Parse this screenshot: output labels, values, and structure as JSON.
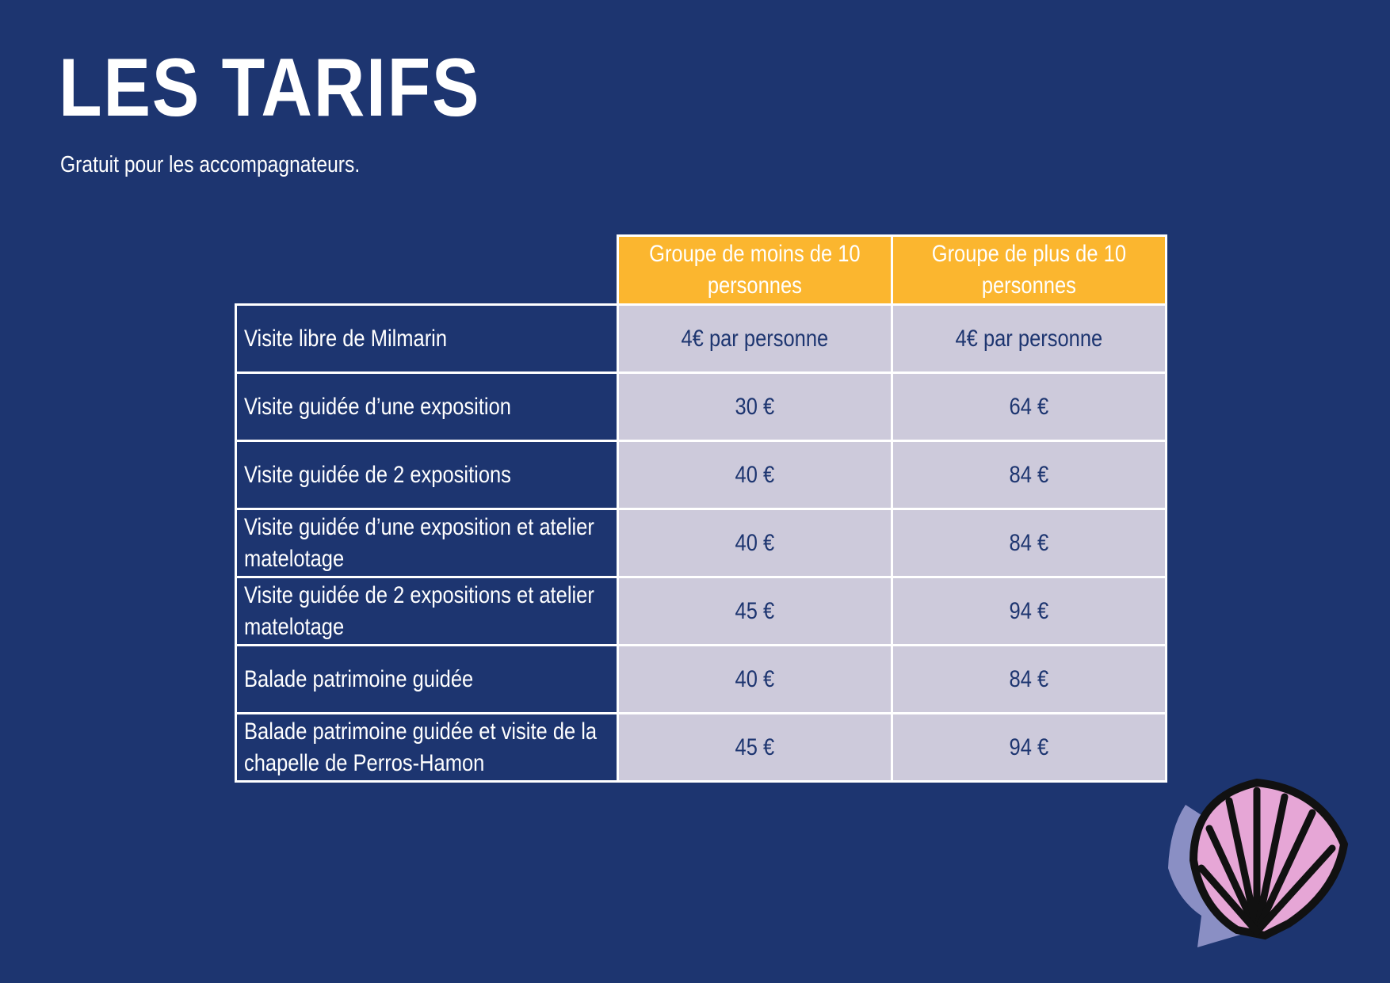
{
  "header": {
    "title": "LES TARIFS",
    "subtitle": "Gratuit pour les accompagnateurs."
  },
  "table": {
    "columns": [
      "Groupe de moins de 10 personnes",
      "Groupe de plus de 10 personnes"
    ],
    "rows": [
      [
        "Visite libre de Milmarin",
        "4€ par personne",
        "4€ par personne"
      ],
      [
        "Visite guidée d’une exposition",
        "30 €",
        "64 €"
      ],
      [
        "Visite guidée de 2 expositions",
        "40 €",
        "84 €"
      ],
      [
        "Visite guidée d’une exposition et atelier matelotage",
        "40 €",
        "84 €"
      ],
      [
        "Visite guidée de 2 expositions et atelier matelotage",
        "45 €",
        "94 €"
      ],
      [
        "Balade patrimoine guidée",
        "40 €",
        "84 €"
      ],
      [
        "Balade patrimoine guidée et visite de la chapelle de Perros-Hamon",
        "45 €",
        "94 €"
      ]
    ]
  }
}
